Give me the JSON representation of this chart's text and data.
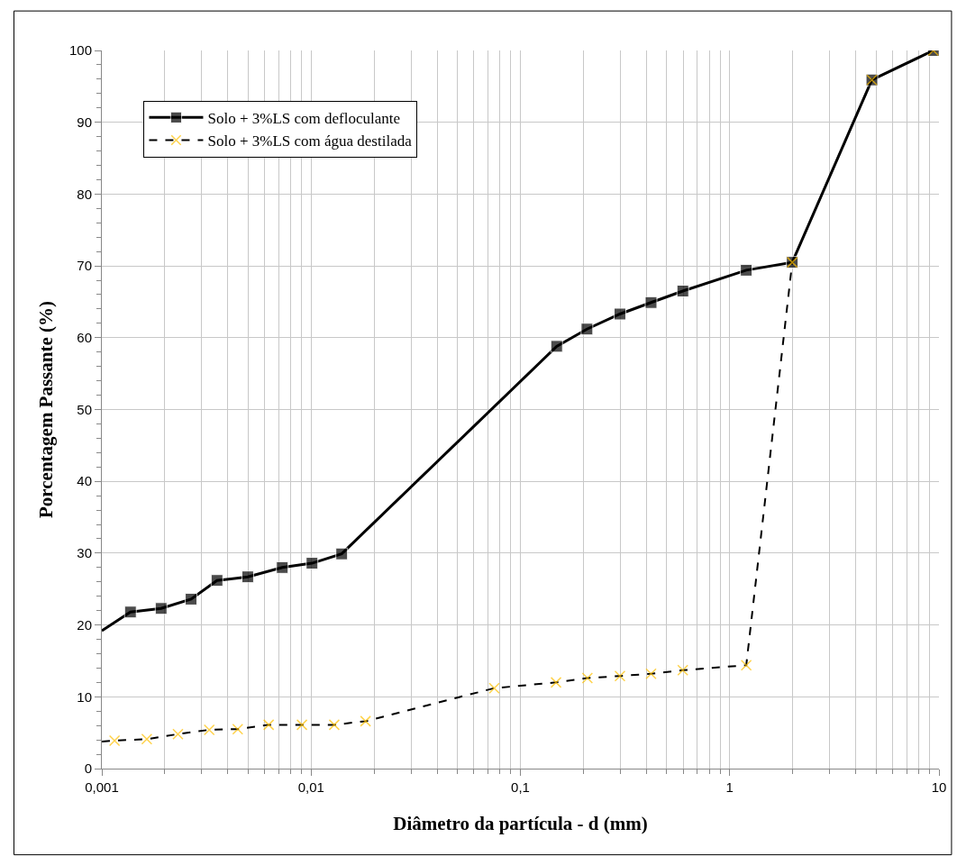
{
  "chart_data": {
    "type": "line",
    "xlabel": "Diâmetro da partícula - d (mm)",
    "ylabel": "Porcentagem Passante (%)",
    "log": "x",
    "xlim": [
      0.001,
      10
    ],
    "ylim": [
      0,
      100
    ],
    "xticks": [
      {
        "value": 0.001,
        "label": "0,001"
      },
      {
        "value": 0.01,
        "label": "0,01"
      },
      {
        "value": 0.1,
        "label": "0,1"
      },
      1,
      10
    ],
    "yticks": [
      0,
      10,
      20,
      30,
      40,
      50,
      60,
      70,
      80,
      90,
      100
    ],
    "grid": true,
    "legend": "top left",
    "series": [
      {
        "name": "Solo + 3%LS com defloculante",
        "color": "#000000",
        "marker": "square",
        "line_style": "solid",
        "x": [
          0.001,
          0.00137,
          0.00192,
          0.00267,
          0.00355,
          0.00498,
          0.00728,
          0.0101,
          0.014,
          0.149,
          0.208,
          0.299,
          0.421,
          0.597,
          1.2,
          1.99,
          4.78,
          9.4
        ],
        "values": [
          19.2,
          21.8,
          22.3,
          23.6,
          26.2,
          26.7,
          28.0,
          28.6,
          29.9,
          58.8,
          61.2,
          63.3,
          64.9,
          66.5,
          69.4,
          70.5,
          95.9,
          100
        ]
      },
      {
        "name": "Solo + 3%LS com água destilada",
        "color": "#ffc000",
        "marker": "cross",
        "line_style": "dashed",
        "x": [
          0.001,
          0.00115,
          0.00164,
          0.00231,
          0.00326,
          0.00446,
          0.00627,
          0.00904,
          0.0129,
          0.0182,
          0.075,
          0.148,
          0.209,
          0.299,
          0.421,
          0.597,
          1.2,
          1.99,
          4.78,
          9.4
        ],
        "values": [
          3.75,
          3.9,
          4.1,
          4.8,
          5.4,
          5.5,
          6.1,
          6.1,
          6.1,
          6.6,
          11.2,
          12.0,
          12.6,
          12.9,
          13.2,
          13.7,
          14.4,
          70.5,
          95.9,
          100
        ]
      }
    ]
  }
}
